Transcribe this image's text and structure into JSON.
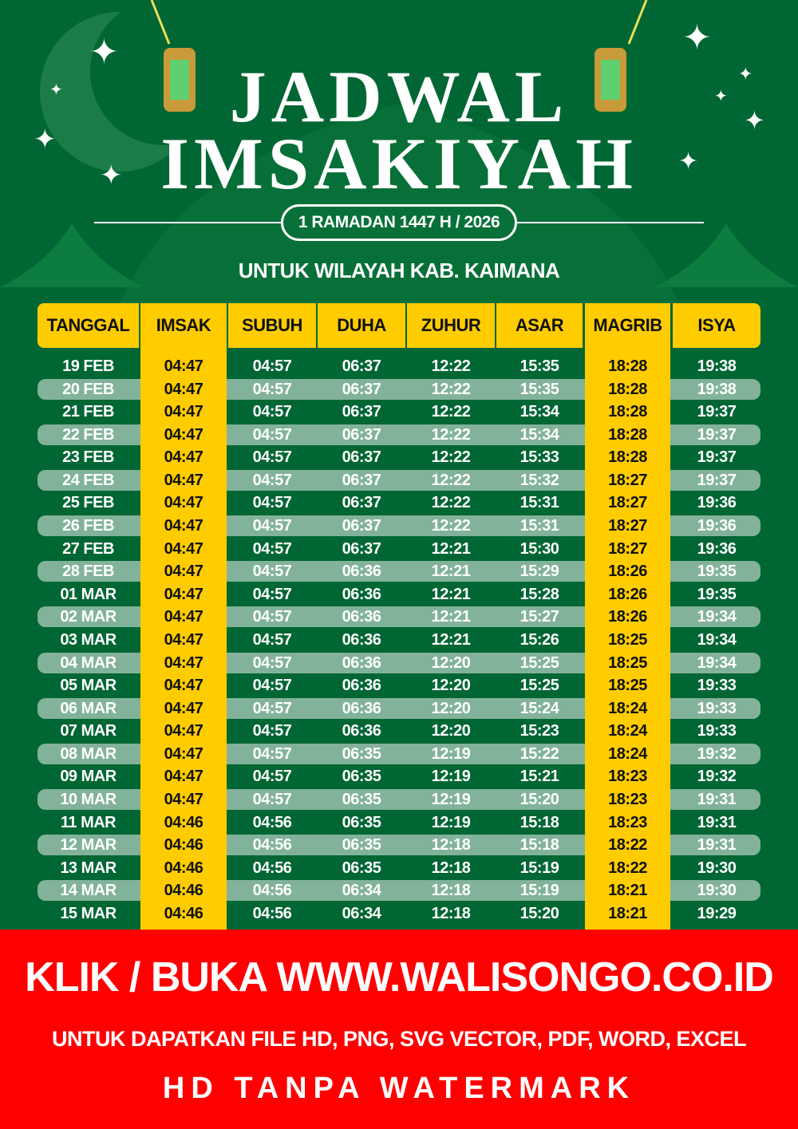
{
  "title": {
    "line1": "JADWAL",
    "line2": "IMSAKIYAH"
  },
  "subtitle": "1 RAMADAN 1447 H / 2026",
  "region": "UNTUK WILAYAH KAB. KAIMANA",
  "colors": {
    "background": "#006633",
    "accent": "#ffcc00",
    "stripe": "#82b39a",
    "banner": "#ff0000"
  },
  "table": {
    "headers": [
      "TANGGAL",
      "IMSAK",
      "SUBUH",
      "DUHA",
      "ZUHUR",
      "ASAR",
      "MAGRIB",
      "ISYA"
    ],
    "rows": [
      [
        "19 FEB",
        "04:47",
        "04:57",
        "06:37",
        "12:22",
        "15:35",
        "18:28",
        "19:38"
      ],
      [
        "20 FEB",
        "04:47",
        "04:57",
        "06:37",
        "12:22",
        "15:35",
        "18:28",
        "19:38"
      ],
      [
        "21 FEB",
        "04:47",
        "04:57",
        "06:37",
        "12:22",
        "15:34",
        "18:28",
        "19:37"
      ],
      [
        "22 FEB",
        "04:47",
        "04:57",
        "06:37",
        "12:22",
        "15:34",
        "18:28",
        "19:37"
      ],
      [
        "23 FEB",
        "04:47",
        "04:57",
        "06:37",
        "12:22",
        "15:33",
        "18:28",
        "19:37"
      ],
      [
        "24 FEB",
        "04:47",
        "04:57",
        "06:37",
        "12:22",
        "15:32",
        "18:27",
        "19:37"
      ],
      [
        "25 FEB",
        "04:47",
        "04:57",
        "06:37",
        "12:22",
        "15:31",
        "18:27",
        "19:36"
      ],
      [
        "26 FEB",
        "04:47",
        "04:57",
        "06:37",
        "12:22",
        "15:31",
        "18:27",
        "19:36"
      ],
      [
        "27 FEB",
        "04:47",
        "04:57",
        "06:37",
        "12:21",
        "15:30",
        "18:27",
        "19:36"
      ],
      [
        "28 FEB",
        "04:47",
        "04:57",
        "06:36",
        "12:21",
        "15:29",
        "18:26",
        "19:35"
      ],
      [
        "01 MAR",
        "04:47",
        "04:57",
        "06:36",
        "12:21",
        "15:28",
        "18:26",
        "19:35"
      ],
      [
        "02 MAR",
        "04:47",
        "04:57",
        "06:36",
        "12:21",
        "15:27",
        "18:26",
        "19:34"
      ],
      [
        "03 MAR",
        "04:47",
        "04:57",
        "06:36",
        "12:21",
        "15:26",
        "18:25",
        "19:34"
      ],
      [
        "04 MAR",
        "04:47",
        "04:57",
        "06:36",
        "12:20",
        "15:25",
        "18:25",
        "19:34"
      ],
      [
        "05 MAR",
        "04:47",
        "04:57",
        "06:36",
        "12:20",
        "15:25",
        "18:25",
        "19:33"
      ],
      [
        "06 MAR",
        "04:47",
        "04:57",
        "06:36",
        "12:20",
        "15:24",
        "18:24",
        "19:33"
      ],
      [
        "07 MAR",
        "04:47",
        "04:57",
        "06:36",
        "12:20",
        "15:23",
        "18:24",
        "19:33"
      ],
      [
        "08 MAR",
        "04:47",
        "04:57",
        "06:35",
        "12:19",
        "15:22",
        "18:24",
        "19:32"
      ],
      [
        "09 MAR",
        "04:47",
        "04:57",
        "06:35",
        "12:19",
        "15:21",
        "18:23",
        "19:32"
      ],
      [
        "10 MAR",
        "04:47",
        "04:57",
        "06:35",
        "12:19",
        "15:20",
        "18:23",
        "19:31"
      ],
      [
        "11 MAR",
        "04:46",
        "04:56",
        "06:35",
        "12:19",
        "15:18",
        "18:23",
        "19:31"
      ],
      [
        "12 MAR",
        "04:46",
        "04:56",
        "06:35",
        "12:18",
        "15:18",
        "18:22",
        "19:31"
      ],
      [
        "13 MAR",
        "04:46",
        "04:56",
        "06:35",
        "12:18",
        "15:19",
        "18:22",
        "19:30"
      ],
      [
        "14 MAR",
        "04:46",
        "04:56",
        "06:34",
        "12:18",
        "15:19",
        "18:21",
        "19:30"
      ],
      [
        "15 MAR",
        "04:46",
        "04:56",
        "06:34",
        "12:18",
        "15:20",
        "18:21",
        "19:29"
      ]
    ]
  },
  "banner": {
    "line1": "KLIK / BUKA WWW.WALISONGO.CO.ID",
    "line2": "UNTUK DAPATKAN FILE HD, PNG, SVG VECTOR, PDF, WORD, EXCEL",
    "line3": "HD TANPA WATERMARK"
  }
}
